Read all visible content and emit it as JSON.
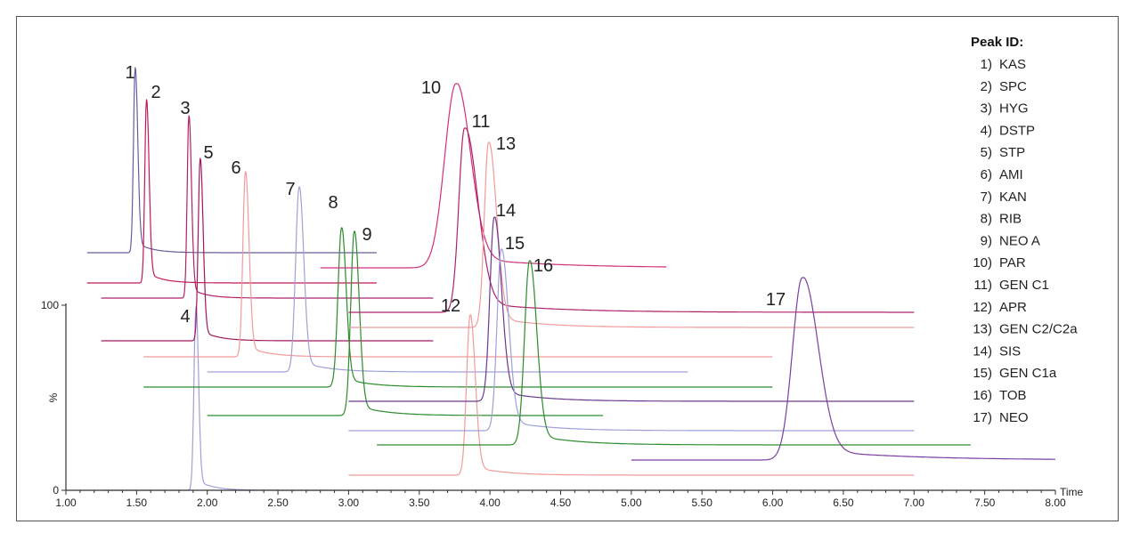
{
  "chart_data": {
    "type": "line",
    "title": "",
    "xlabel": "Time",
    "ylabel": "%",
    "xlim": [
      1.0,
      8.0
    ],
    "x_ticks": [
      "1.00",
      "1.50",
      "2.00",
      "2.50",
      "3.00",
      "3.50",
      "4.00",
      "4.50",
      "5.00",
      "5.50",
      "6.00",
      "6.50",
      "7.00",
      "7.50",
      "8.00"
    ],
    "y_ticks": [
      "0",
      "100"
    ],
    "legend": {
      "title": "Peak ID:",
      "placement": "top-right",
      "entries": [
        {
          "num": "1)",
          "name": "KAS"
        },
        {
          "num": "2)",
          "name": "SPC"
        },
        {
          "num": "3)",
          "name": "HYG"
        },
        {
          "num": "4)",
          "name": "DSTP"
        },
        {
          "num": "5)",
          "name": "STP"
        },
        {
          "num": "6)",
          "name": "AMI"
        },
        {
          "num": "7)",
          "name": "KAN"
        },
        {
          "num": "8)",
          "name": "RIB"
        },
        {
          "num": "9)",
          "name": "NEO A"
        },
        {
          "num": "10)",
          "name": "PAR"
        },
        {
          "num": "11)",
          "name": "GEN C1"
        },
        {
          "num": "12)",
          "name": "APR"
        },
        {
          "num": "13)",
          "name": "GEN C2/C2a"
        },
        {
          "num": "14)",
          "name": "SIS"
        },
        {
          "num": "15)",
          "name": "GEN C1a"
        },
        {
          "num": "16)",
          "name": "TOB"
        },
        {
          "num": "17)",
          "name": "NEO"
        }
      ]
    },
    "series": [
      {
        "label": "1",
        "peak_time": 1.49,
        "x_start": 1.15,
        "x_end": 3.2,
        "color": "#6a5a9a"
      },
      {
        "label": "2",
        "peak_time": 1.57,
        "x_start": 1.15,
        "x_end": 3.2,
        "color": "#c2185b"
      },
      {
        "label": "3",
        "peak_time": 1.87,
        "x_start": 1.25,
        "x_end": 3.6,
        "color": "#b0226a"
      },
      {
        "label": "4",
        "peak_time": 1.92,
        "x_start": 1.25,
        "x_end": 3.6,
        "color": "#9fa0d8"
      },
      {
        "label": "5",
        "peak_time": 1.95,
        "x_start": 1.25,
        "x_end": 3.6,
        "color": "#a0185e"
      },
      {
        "label": "6",
        "peak_time": 2.27,
        "x_start": 1.55,
        "x_end": 6.0,
        "color": "#f29a9a"
      },
      {
        "label": "7",
        "peak_time": 2.65,
        "x_start": 2.0,
        "x_end": 5.4,
        "color": "#9fa0d8"
      },
      {
        "label": "8",
        "peak_time": 2.95,
        "x_start": 1.55,
        "x_end": 6.0,
        "color": "#2e8b2e"
      },
      {
        "label": "9",
        "peak_time": 3.04,
        "x_start": 2.0,
        "x_end": 4.8,
        "color": "#2e8b2e"
      },
      {
        "label": "10",
        "peak_time": 3.76,
        "x_start": 2.8,
        "x_end": 5.25,
        "color": "#d0307a"
      },
      {
        "label": "11",
        "peak_time": 3.82,
        "x_start": 3.0,
        "x_end": 7.0,
        "color": "#b0226a"
      },
      {
        "label": "12",
        "peak_time": 3.86,
        "x_start": 3.0,
        "x_end": 7.0,
        "color": "#f29a9a"
      },
      {
        "label": "13",
        "peak_time": 3.99,
        "x_start": 3.0,
        "x_end": 7.0,
        "color": "#f29a9a"
      },
      {
        "label": "14",
        "peak_time": 4.03,
        "x_start": 3.0,
        "x_end": 7.0,
        "color": "#6b3a8f"
      },
      {
        "label": "15",
        "peak_time": 4.08,
        "x_start": 3.0,
        "x_end": 7.0,
        "color": "#9fa0d8"
      },
      {
        "label": "16",
        "peak_time": 4.28,
        "x_start": 3.2,
        "x_end": 7.4,
        "color": "#2e8b2e"
      },
      {
        "label": "17",
        "peak_time": 6.21,
        "x_start": 5.0,
        "x_end": 8.0,
        "color": "#7b3fa0"
      }
    ]
  }
}
